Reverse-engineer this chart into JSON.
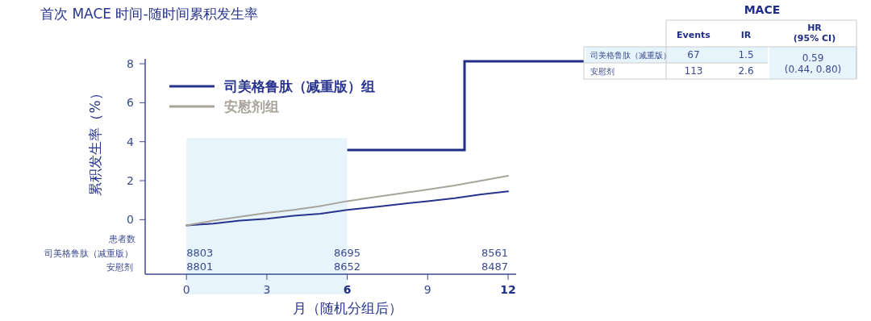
{
  "chart_data": {
    "type": "line",
    "title": "首次 MACE 时间-随时间累积发生率",
    "xlabel": "月（随机分组后）",
    "ylabel": "累积发生率（%）",
    "x": [
      0,
      1,
      2,
      3,
      4,
      5,
      6,
      7,
      8,
      9,
      10,
      11,
      12
    ],
    "series": [
      {
        "name": "司美格鲁肽（减重版）组",
        "color": "#27338c",
        "values": [
          -0.3,
          -0.2,
          -0.05,
          0.05,
          0.2,
          0.3,
          0.5,
          0.65,
          0.8,
          0.95,
          1.1,
          1.3,
          1.45
        ]
      },
      {
        "name": "安慰剂组",
        "color": "#a8a49c",
        "values": [
          -0.3,
          -0.05,
          0.15,
          0.35,
          0.5,
          0.7,
          0.95,
          1.15,
          1.35,
          1.55,
          1.75,
          2.0,
          2.25
        ]
      }
    ],
    "xlim": [
      -1.54,
      12.3
    ],
    "xticks": [
      0,
      3,
      6,
      9,
      12
    ],
    "ylim": [
      -2.8,
      8.25
    ],
    "yticks": [
      0,
      2,
      4,
      6,
      8
    ],
    "bands": [
      {
        "axis": "x",
        "from": 0,
        "to": 6,
        "color": "#e8f4fc"
      }
    ],
    "legend": "top left",
    "grid": false,
    "marker": "none",
    "line_style": "solid",
    "annotations": [
      "患者数",
      "司美格鲁肽（减重版）",
      "安慰剂",
      "8803",
      "8695",
      "8561",
      "8801",
      "8652",
      "8487",
      "MACE",
      "Events",
      "IR",
      "HR\n(95% CI)",
      "司美格鲁肽（减重版）",
      "67",
      "1.5",
      "安慰剂",
      "113",
      "2.6",
      "0.59\n(0.44, 0.80)"
    ]
  }
}
